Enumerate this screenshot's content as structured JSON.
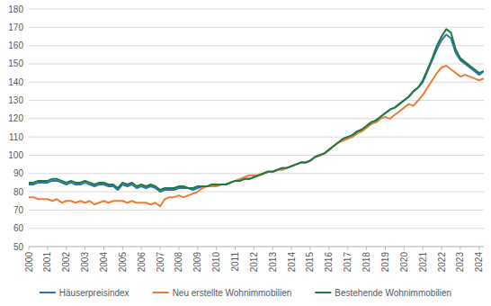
{
  "chart_data": {
    "type": "line",
    "categories": [
      "2000",
      null,
      null,
      null,
      "2001",
      null,
      null,
      null,
      "2002",
      null,
      null,
      null,
      "2003",
      null,
      null,
      null,
      "2004",
      null,
      null,
      null,
      "2005",
      null,
      null,
      null,
      "2006",
      null,
      null,
      null,
      "2007",
      null,
      null,
      null,
      "2008",
      null,
      null,
      null,
      "2009",
      null,
      null,
      null,
      "2010",
      null,
      null,
      null,
      "2011",
      null,
      null,
      null,
      "2012",
      null,
      null,
      null,
      "2013",
      null,
      null,
      null,
      "2014",
      null,
      null,
      null,
      "2015",
      null,
      null,
      null,
      "2016",
      null,
      null,
      null,
      "2017",
      null,
      null,
      null,
      "2018",
      null,
      null,
      null,
      "2019",
      null,
      null,
      null,
      "2020",
      null,
      null,
      null,
      "2021",
      null,
      null,
      null,
      "2022",
      null,
      null,
      null,
      "2023",
      null,
      null,
      null,
      "2024",
      null
    ],
    "series": [
      {
        "name": "Häuserpreisindex",
        "color": "#2e74b5",
        "values": [
          84,
          84,
          85,
          85,
          85,
          86,
          86,
          85,
          84,
          85,
          84,
          84,
          85,
          84,
          83,
          84,
          84,
          83,
          83,
          81,
          84,
          83,
          84,
          82,
          83,
          82,
          83,
          82,
          80,
          81,
          81,
          81,
          82,
          82,
          82,
          81,
          82,
          83,
          83,
          83,
          84,
          84,
          84,
          85,
          86,
          86,
          87,
          87,
          88,
          89,
          90,
          91,
          91,
          92,
          93,
          93,
          94,
          95,
          96,
          96,
          97,
          99,
          100,
          101,
          103,
          105,
          107,
          109,
          110,
          111,
          113,
          114,
          116,
          118,
          119,
          121,
          123,
          125,
          126,
          128,
          130,
          132,
          135,
          137,
          140,
          146,
          152,
          158,
          163,
          166,
          164,
          156,
          152,
          150,
          148,
          146,
          144,
          146
        ]
      },
      {
        "name": "Neu erstellte Wohnimmobilien",
        "color": "#ed7d31",
        "values": [
          77,
          77,
          76,
          76,
          76,
          75,
          76,
          74,
          75,
          75,
          74,
          75,
          74,
          75,
          73,
          74,
          75,
          74,
          75,
          75,
          75,
          74,
          75,
          74,
          74,
          74,
          73,
          74,
          72,
          76,
          77,
          77,
          78,
          77,
          78,
          79,
          80,
          82,
          83,
          83,
          83,
          84,
          84,
          85,
          86,
          87,
          88,
          89,
          89,
          89,
          90,
          91,
          91,
          92,
          92,
          93,
          94,
          95,
          96,
          96,
          97,
          99,
          100,
          101,
          103,
          105,
          107,
          108,
          109,
          110,
          112,
          113,
          115,
          117,
          118,
          120,
          121,
          120,
          122,
          124,
          126,
          128,
          127,
          130,
          133,
          137,
          141,
          145,
          148,
          149,
          147,
          145,
          143,
          144,
          143,
          142,
          141,
          142
        ]
      },
      {
        "name": "Bestehende Wohnimmobilien",
        "color": "#1e7b3c",
        "values": [
          85,
          85,
          86,
          86,
          86,
          87,
          87,
          86,
          85,
          86,
          85,
          85,
          86,
          85,
          84,
          85,
          85,
          84,
          84,
          82,
          85,
          84,
          85,
          83,
          84,
          83,
          84,
          83,
          81,
          82,
          82,
          82,
          83,
          83,
          82,
          82,
          83,
          83,
          83,
          84,
          84,
          84,
          84,
          85,
          86,
          86,
          87,
          87,
          88,
          89,
          90,
          91,
          91,
          92,
          93,
          93,
          94,
          95,
          96,
          96,
          97,
          99,
          100,
          101,
          103,
          105,
          107,
          109,
          110,
          111,
          113,
          114,
          116,
          118,
          119,
          121,
          123,
          125,
          126,
          128,
          130,
          132,
          135,
          137,
          141,
          147,
          153,
          160,
          165,
          169,
          167,
          158,
          153,
          151,
          149,
          147,
          145,
          146
        ]
      }
    ],
    "ylim": [
      50,
      180
    ],
    "yticks": [
      50,
      60,
      70,
      80,
      90,
      100,
      110,
      120,
      130,
      140,
      150,
      160,
      170,
      180
    ],
    "grid": true,
    "legend": "bottom"
  }
}
